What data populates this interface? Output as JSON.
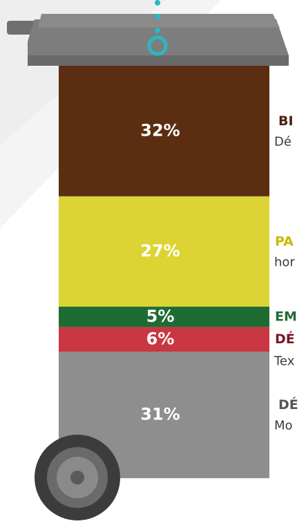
{
  "chart_data": {
    "type": "bin",
    "series": [
      {
        "name": "BI",
        "description": "Dé",
        "color": "#5b2e12",
        "name_color": "#4a2210",
        "values": [
          32
        ],
        "value_labels": [
          "32%"
        ]
      },
      {
        "name": "PA",
        "description": "hor",
        "color": "#dcd435",
        "name_color": "#c9b800",
        "values": [
          27
        ],
        "value_labels": [
          "27%"
        ]
      },
      {
        "name": "EM",
        "description": null,
        "color": "#1f6b34",
        "name_color": "#1f6b34",
        "values": [
          5
        ],
        "value_labels": [
          "5%"
        ]
      },
      {
        "name": "DÉ",
        "description": "Tex",
        "color": "#c93742",
        "name_color": "#7a1424",
        "values": [
          6
        ],
        "value_labels": [
          "6%"
        ]
      },
      {
        "name": "DÉ",
        "description": "Mo",
        "color": "#8e8e8e",
        "name_color": "#555555",
        "values": [
          31
        ],
        "value_labels": [
          "31%"
        ]
      }
    ]
  }
}
